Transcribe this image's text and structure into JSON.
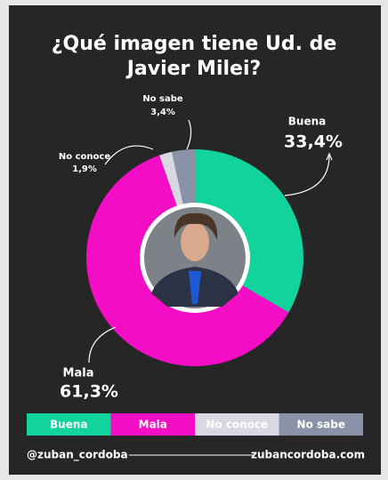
{
  "chart_data": {
    "type": "pie",
    "title": "¿Qué imagen tiene Ud. de Javier Milei?",
    "categories": [
      "Buena",
      "Mala",
      "No conoce",
      "No sabe"
    ],
    "values": [
      33.4,
      61.3,
      1.9,
      3.4
    ],
    "value_labels": [
      "33,4%",
      "61,3%",
      "1,9%",
      "3,4%"
    ],
    "colors": [
      "#12d39b",
      "#f30dc4",
      "#d8d8e2",
      "#8a92a8"
    ]
  },
  "footer": {
    "left": "@zuban_cordoba",
    "right": "zubancordoba.com"
  }
}
